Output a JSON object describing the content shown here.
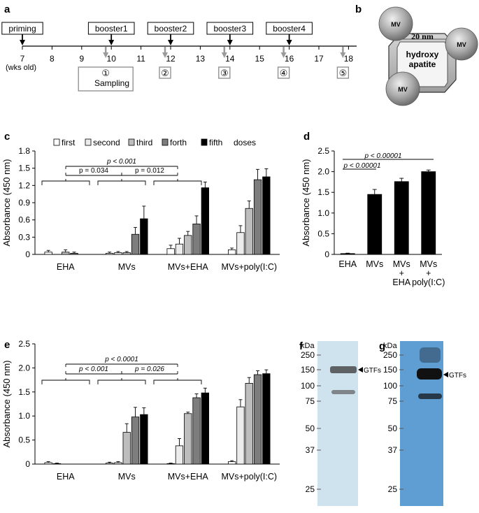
{
  "panels": {
    "a": {
      "letter": "a",
      "events": [
        "priming",
        "booster1",
        "booster2",
        "booster3",
        "booster4"
      ],
      "event_weeks": [
        7,
        10,
        12,
        14,
        16
      ],
      "ticks": [
        "7",
        "8",
        "9",
        "10",
        "11",
        "12",
        "13",
        "14",
        "15",
        "16",
        "17",
        "18"
      ],
      "unit_label": "(wks old)",
      "sampling_weeks": [
        10,
        12,
        14,
        16,
        18
      ],
      "sampling_marks": [
        "①",
        "②",
        "③",
        "④",
        "⑤"
      ],
      "sampling_label": "Sampling"
    },
    "b": {
      "letter": "b",
      "size_label": "20 nm",
      "core_line1": "hydroxy",
      "core_line2": "apatite",
      "particle_label": "MV"
    },
    "c": {
      "letter": "c",
      "legend": [
        "first",
        "second",
        "third",
        "forth",
        "fifth"
      ],
      "legend_suffix": "doses",
      "stat_top": "p < 0.001",
      "stat_left": "p = 0.034",
      "stat_right": "p = 0.012"
    },
    "d": {
      "letter": "d",
      "stat_top": "p < 0.00001",
      "stat_bottom": "p < 0.00001"
    },
    "e": {
      "letter": "e",
      "stat_top": "p < 0.0001",
      "stat_left": "p < 0.001",
      "stat_right": "p = 0.026"
    },
    "f": {
      "letter": "f",
      "unit": "kDa",
      "markers": [
        "250",
        "150",
        "100",
        "75",
        "50",
        "37",
        "25"
      ],
      "band_label": "GTFs"
    },
    "g": {
      "letter": "g",
      "unit": "kDa",
      "markers": [
        "250",
        "150",
        "100",
        "75",
        "50",
        "37",
        "25"
      ],
      "band_label": "GTFs"
    }
  },
  "dose_colors": [
    "#ffffff",
    "#ececec",
    "#bdbdbd",
    "#7d7d7d",
    "#000000"
  ],
  "chart_data": [
    {
      "panel": "c",
      "type": "bar",
      "categories": [
        "EHA",
        "MVs",
        "MVs+EHA",
        "MVs+poly(I:C)"
      ],
      "ylabel": "Absorbance (450 nm)",
      "ylim": [
        0,
        1.8
      ],
      "yticks": [
        "0",
        "0.3",
        "0.6",
        "0.9",
        "1.2",
        "1.5",
        "1.8"
      ],
      "series": [
        {
          "name": "first",
          "values": [
            0.04,
            0.02,
            0.1,
            0.08
          ],
          "errors": [
            0.03,
            0.02,
            0.06,
            0.03
          ]
        },
        {
          "name": "second",
          "values": [
            0.0,
            0.03,
            0.18,
            0.38
          ],
          "errors": [
            0.0,
            0.02,
            0.1,
            0.12
          ]
        },
        {
          "name": "third",
          "values": [
            0.04,
            0.03,
            0.33,
            0.8
          ],
          "errors": [
            0.04,
            0.02,
            0.07,
            0.13
          ]
        },
        {
          "name": "forth",
          "values": [
            0.02,
            0.35,
            0.53,
            1.3
          ],
          "errors": [
            0.02,
            0.12,
            0.14,
            0.18
          ]
        },
        {
          "name": "fifth",
          "values": [
            0.0,
            0.62,
            1.16,
            1.35
          ],
          "errors": [
            0.0,
            0.22,
            0.1,
            0.14
          ]
        }
      ]
    },
    {
      "panel": "d",
      "type": "bar",
      "categories": [
        "EHA",
        "MVs",
        "MVs + EHA",
        "MVs + poly(I:C)"
      ],
      "ylabel": "Absorbance (450 nm)",
      "ylim": [
        0,
        2.5
      ],
      "yticks": [
        "0",
        "0.5",
        "1.0",
        "1.5",
        "2.0",
        "2.5"
      ],
      "values": [
        0.02,
        1.45,
        1.76,
        2.0
      ],
      "errors": [
        0.01,
        0.12,
        0.08,
        0.04
      ]
    },
    {
      "panel": "e",
      "type": "bar",
      "categories": [
        "EHA",
        "MVs",
        "MVs+EHA",
        "MVs+poly(I:C)"
      ],
      "ylabel": "Absorbance (450 nm)",
      "ylim": [
        0,
        2.5
      ],
      "yticks": [
        "0",
        "0.5",
        "1.0",
        "1.5",
        "2.0",
        "2.5"
      ],
      "series": [
        {
          "name": "first",
          "values": [
            0.03,
            0.02,
            0.01,
            0.05
          ],
          "errors": [
            0.02,
            0.02,
            0.01,
            0.02
          ]
        },
        {
          "name": "second",
          "values": [
            0.01,
            0.03,
            0.38,
            1.19
          ],
          "errors": [
            0.01,
            0.02,
            0.15,
            0.15
          ]
        },
        {
          "name": "third",
          "values": [
            0.0,
            0.66,
            1.05,
            1.68
          ],
          "errors": [
            0.0,
            0.18,
            0.03,
            0.12
          ]
        },
        {
          "name": "forth",
          "values": [
            0.0,
            0.98,
            1.38,
            1.86
          ],
          "errors": [
            0.0,
            0.2,
            0.08,
            0.08
          ]
        },
        {
          "name": "fifth",
          "values": [
            0.0,
            1.03,
            1.48,
            1.88
          ],
          "errors": [
            0.0,
            0.14,
            0.1,
            0.08
          ]
        }
      ]
    }
  ]
}
